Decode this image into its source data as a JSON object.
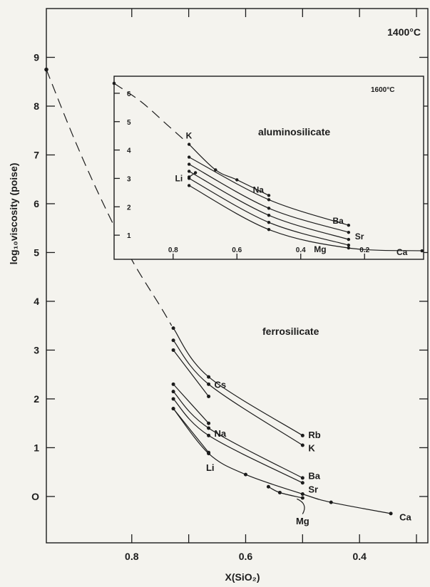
{
  "chart_data": [
    {
      "type": "line",
      "xlabel": "X(SiO₂)",
      "ylabel": "log₁₀viscosity (poise)",
      "xlim": [
        0.95,
        0.28
      ],
      "ylim": [
        -0.95,
        10.0
      ],
      "x_reversed": true,
      "x_ticks": [
        0.8,
        0.6,
        0.4
      ],
      "x_tick_labels": [
        "0.8",
        "0.6",
        "0.4"
      ],
      "y_ticks": [
        0,
        1,
        2,
        3,
        4,
        5,
        6,
        7,
        8,
        9
      ],
      "y_tick_labels": [
        "O",
        "1",
        "2",
        "3",
        "4",
        "5",
        "6",
        "7",
        "8",
        "9"
      ],
      "annotations": [
        "1400°C",
        "ferrosilicate"
      ],
      "extrapolation": {
        "x": [
          0.95,
          0.9,
          0.85,
          0.8,
          0.75,
          0.73
        ],
        "y": [
          8.75,
          7.3,
          6.0,
          4.85,
          3.9,
          3.5
        ]
      },
      "series": [
        {
          "name": "Rb",
          "x": [
            0.727,
            0.665,
            0.5
          ],
          "y": [
            3.45,
            2.45,
            1.25
          ]
        },
        {
          "name": "K",
          "x": [
            0.727,
            0.665,
            0.5
          ],
          "y": [
            3.2,
            2.3,
            1.05
          ]
        },
        {
          "name": "Cs",
          "x": [
            0.727,
            0.665
          ],
          "y": [
            3.0,
            2.05
          ]
        },
        {
          "name": "Na",
          "x": [
            0.727,
            0.665
          ],
          "y": [
            2.3,
            1.5
          ]
        },
        {
          "name": "Ba",
          "x": [
            0.727,
            0.665,
            0.5
          ],
          "y": [
            2.15,
            1.4,
            0.38
          ]
        },
        {
          "name": "Sr",
          "x": [
            0.727,
            0.665,
            0.5
          ],
          "y": [
            2.0,
            1.25,
            0.28
          ]
        },
        {
          "name": "Li",
          "x": [
            0.727,
            0.665
          ],
          "y": [
            1.8,
            0.9
          ]
        },
        {
          "name": "Mg",
          "x": [
            0.56,
            0.54,
            0.5
          ],
          "y": [
            0.2,
            0.08,
            -0.03
          ]
        },
        {
          "name": "Ca",
          "x": [
            0.727,
            0.665,
            0.6,
            0.5,
            0.45,
            0.345
          ],
          "y": [
            1.8,
            0.88,
            0.45,
            0.05,
            -0.12,
            -0.35
          ]
        }
      ]
    },
    {
      "type": "line",
      "xlim": [
        0.985,
        0.015
      ],
      "ylim": [
        0.15,
        6.6
      ],
      "x_reversed": true,
      "x_ticks": [
        0.8,
        0.6,
        0.4,
        0.2
      ],
      "x_tick_labels": [
        "0.8",
        "0.6",
        "0.4",
        "0.2"
      ],
      "y_ticks": [
        1,
        2,
        3,
        4,
        5,
        6
      ],
      "y_tick_labels": [
        "1",
        "2",
        "3",
        "4",
        "5",
        "6"
      ],
      "annotations": [
        "1600°C",
        "aluminosilicate"
      ],
      "extrapolation": {
        "x": [
          0.985,
          0.9,
          0.82,
          0.76
        ],
        "y": [
          6.35,
          5.7,
          4.9,
          4.3
        ]
      },
      "series": [
        {
          "name": "K",
          "x": [
            0.75,
            0.667,
            0.6,
            0.5
          ],
          "y": [
            4.2,
            3.3,
            2.95,
            2.4
          ]
        },
        {
          "name": "Na",
          "x": [
            0.75,
            0.5,
            0.25
          ],
          "y": [
            3.75,
            2.25,
            1.35
          ]
        },
        {
          "name": "Ba",
          "x": [
            0.75,
            0.5,
            0.25
          ],
          "y": [
            3.5,
            1.95,
            1.1
          ]
        },
        {
          "name": "Sr",
          "x": [
            0.75,
            0.5,
            0.25
          ],
          "y": [
            3.25,
            1.7,
            0.85
          ]
        },
        {
          "name": "Li",
          "x": [
            0.75,
            0.73
          ],
          "y": [
            3.05,
            3.2
          ]
        },
        {
          "name": "Mg",
          "x": [
            0.75,
            0.5,
            0.25
          ],
          "y": [
            3.0,
            1.45,
            0.65
          ]
        },
        {
          "name": "Ca",
          "x": [
            0.75,
            0.5,
            0.25,
            0.02
          ],
          "y": [
            2.75,
            1.2,
            0.55,
            0.45
          ]
        }
      ]
    }
  ]
}
